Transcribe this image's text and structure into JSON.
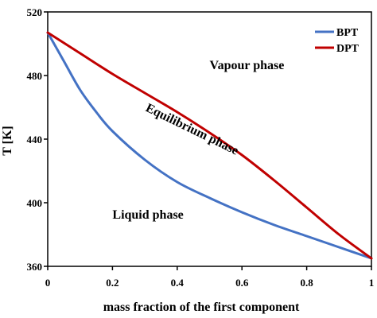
{
  "chart_data": {
    "type": "line",
    "title": "",
    "xlabel": "mass fraction of the first component",
    "ylabel": "T [K]",
    "xlim": [
      0,
      1
    ],
    "ylim": [
      360,
      520
    ],
    "x_ticks": [
      0,
      0.2,
      0.4,
      0.6,
      0.8,
      1
    ],
    "x_tick_labels": [
      "0",
      "0.2",
      "0.4",
      "0.6",
      "0.8",
      "1"
    ],
    "y_ticks": [
      360,
      400,
      440,
      480,
      520
    ],
    "y_tick_labels": [
      "360",
      "400",
      "440",
      "480",
      "520"
    ],
    "grid": false,
    "legend_position": "top-right",
    "series": [
      {
        "name": "BPT",
        "color": "#4472c4",
        "x": [
          0,
          0.05,
          0.1,
          0.15,
          0.2,
          0.3,
          0.4,
          0.5,
          0.6,
          0.7,
          0.8,
          0.9,
          1.0
        ],
        "y": [
          507,
          489,
          471,
          457,
          445,
          427,
          413,
          403,
          394,
          386,
          379,
          372,
          365
        ]
      },
      {
        "name": "DPT",
        "color": "#c00000",
        "x": [
          0,
          0.1,
          0.2,
          0.3,
          0.4,
          0.5,
          0.6,
          0.7,
          0.8,
          0.9,
          1.0
        ],
        "y": [
          507,
          494,
          481,
          469,
          457,
          444,
          430,
          414,
          397,
          380,
          365
        ]
      }
    ],
    "annotations": [
      {
        "text": "Vapour phase",
        "x": 0.5,
        "y": 484
      },
      {
        "text": "Equilibrium phase",
        "x": 0.3,
        "y": 458,
        "rotation": 26
      },
      {
        "text": "Liquid phase",
        "x": 0.2,
        "y": 390
      }
    ]
  }
}
